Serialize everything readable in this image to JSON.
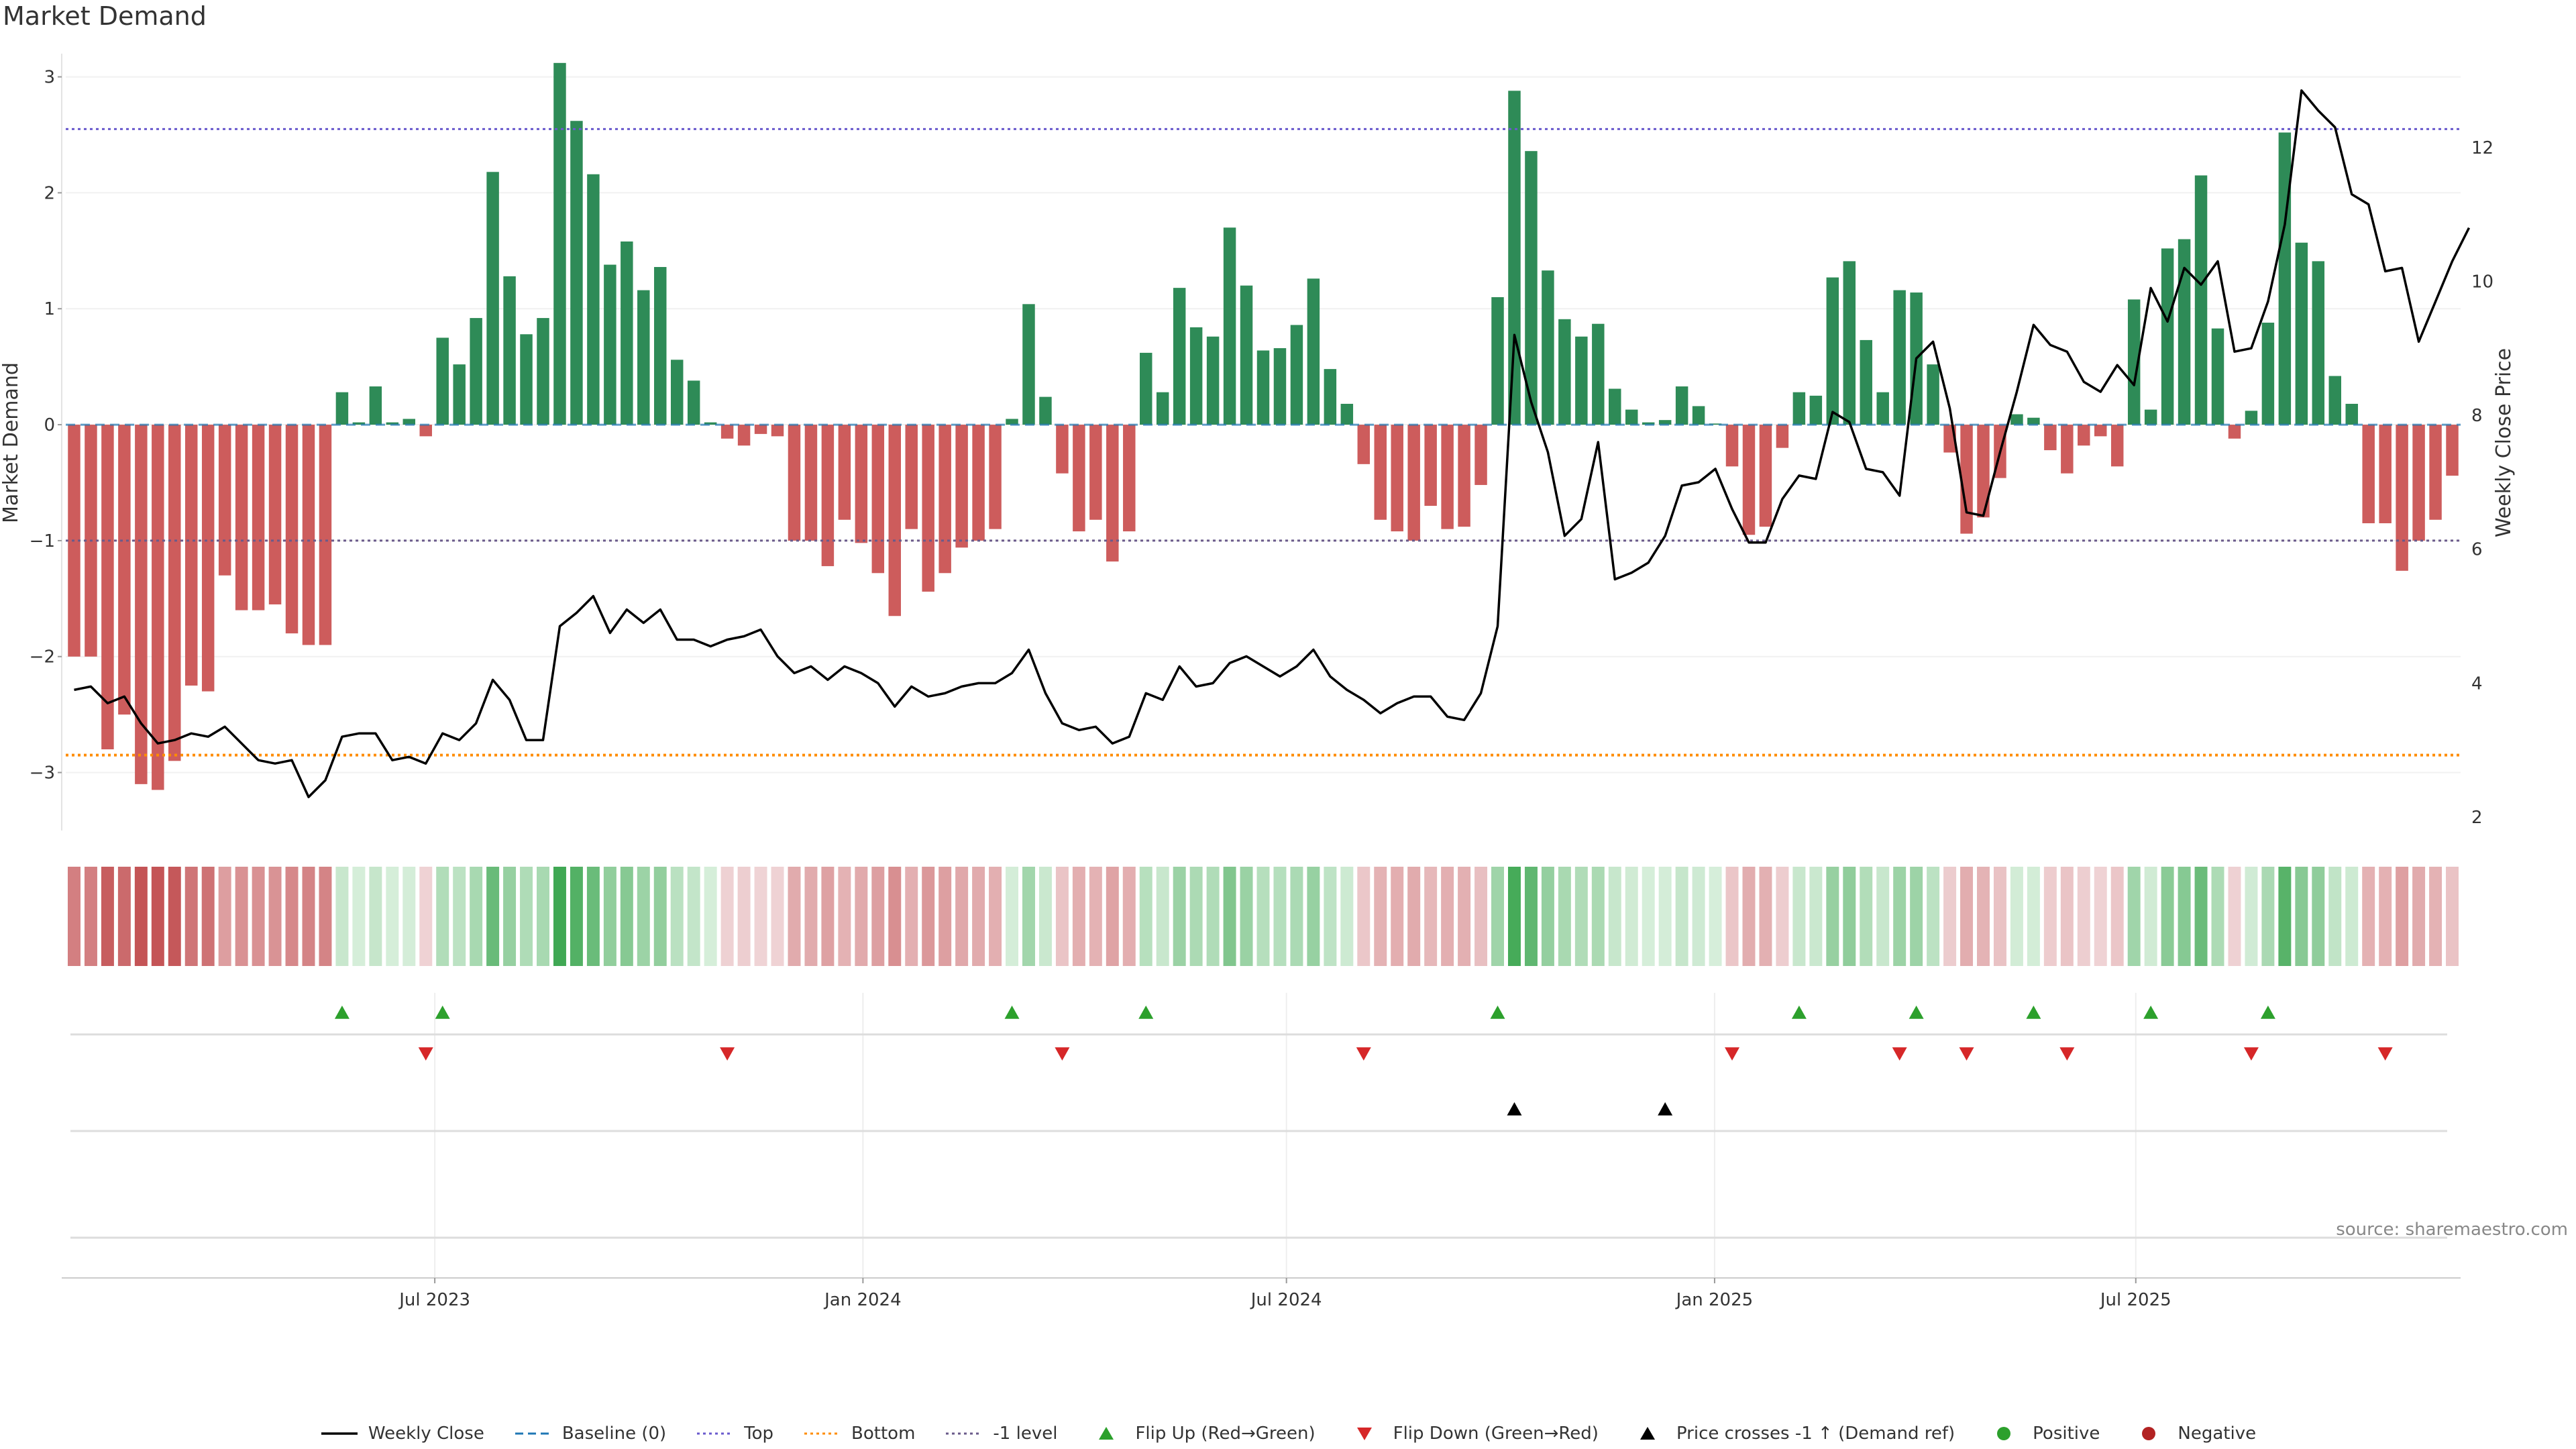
{
  "title": "Market Demand",
  "source": "source: sharemaestro.com",
  "colors": {
    "positive": "#2e8b57",
    "negative": "#cd5c5c",
    "price": "#000000",
    "top": "#6a5acd",
    "bottom": "#ff8c00",
    "minus_one": "#6a5a8a",
    "flip_up": "#2ca02c",
    "flip_down": "#d62728",
    "cross": "#000000"
  },
  "chart_data": {
    "type": "bar",
    "title": "Market Demand",
    "ylabel": "Market Demand",
    "y2label": "Weekly Close Price",
    "ylim": [
      -3.5,
      3.2
    ],
    "y2lim": [
      1.8,
      13.4
    ],
    "yticks": [
      -3,
      -2,
      -1,
      0,
      1,
      2,
      3
    ],
    "y2ticks": [
      2,
      4,
      6,
      8,
      10,
      12
    ],
    "x_start": "2023-01-27",
    "x_end": "2025-11-14",
    "xticks": [
      {
        "date": "2023-07-01",
        "label": "Jul 2023"
      },
      {
        "date": "2024-01-01",
        "label": "Jan 2024"
      },
      {
        "date": "2024-07-01",
        "label": "Jul 2024"
      },
      {
        "date": "2025-01-01",
        "label": "Jan 2025"
      },
      {
        "date": "2025-07-01",
        "label": "Jul 2025"
      }
    ],
    "reference_lines": {
      "top": 2.55,
      "bottom": -2.85,
      "minus_one": -1,
      "baseline": 0
    },
    "series": [
      {
        "name": "Market Demand",
        "type": "bar",
        "values": [
          -2.0,
          -2.0,
          -2.8,
          -2.5,
          -3.1,
          -3.15,
          -2.9,
          -2.25,
          -2.3,
          -1.3,
          -1.6,
          -1.6,
          -1.55,
          -1.8,
          -1.9,
          -1.9,
          0.28,
          0.02,
          0.33,
          0.02,
          0.05,
          -0.1,
          0.75,
          0.52,
          0.92,
          2.18,
          1.28,
          0.78,
          0.92,
          3.12,
          2.62,
          2.16,
          1.38,
          1.58,
          1.16,
          1.36,
          0.56,
          0.38,
          0.02,
          -0.12,
          -0.18,
          -0.08,
          -0.1,
          -1.0,
          -1.0,
          -1.22,
          -0.82,
          -1.02,
          -1.28,
          -1.65,
          -0.9,
          -1.44,
          -1.28,
          -1.06,
          -1.0,
          -0.9,
          0.05,
          1.04,
          0.24,
          -0.42,
          -0.92,
          -0.82,
          -1.18,
          -0.92,
          0.62,
          0.28,
          1.18,
          0.84,
          0.76,
          1.7,
          1.2,
          0.64,
          0.66,
          0.86,
          1.26,
          0.48,
          0.18,
          -0.34,
          -0.82,
          -0.92,
          -1.0,
          -0.7,
          -0.9,
          -0.88,
          -0.52,
          1.1,
          2.88,
          2.36,
          1.33,
          0.91,
          0.76,
          0.87,
          0.31,
          0.13,
          0.02,
          0.04,
          0.33,
          0.16,
          0.01,
          -0.36,
          -0.95,
          -0.88,
          -0.2,
          0.28,
          0.25,
          1.27,
          1.41,
          0.73,
          0.28,
          1.16,
          1.14,
          0.52,
          -0.24,
          -0.94,
          -0.8,
          -0.46,
          0.09,
          0.06,
          -0.22,
          -0.42,
          -0.18,
          -0.1,
          -0.36,
          1.08,
          0.13,
          1.52,
          1.6,
          2.15,
          0.83,
          -0.12,
          0.12,
          0.88,
          2.52,
          1.57,
          1.41,
          0.42,
          0.18,
          -0.85,
          -0.85,
          -1.26,
          -1.0,
          -0.82,
          -0.44
        ]
      },
      {
        "name": "Weekly Close",
        "type": "line",
        "axis": "right",
        "values": [
          3.9,
          3.95,
          3.7,
          3.8,
          3.4,
          3.1,
          3.15,
          3.25,
          3.2,
          3.35,
          3.1,
          2.85,
          2.8,
          2.85,
          2.3,
          2.55,
          3.2,
          3.25,
          3.25,
          2.85,
          2.9,
          2.8,
          3.25,
          3.15,
          3.4,
          4.05,
          3.75,
          3.15,
          3.15,
          4.85,
          5.05,
          5.3,
          4.75,
          5.1,
          4.9,
          5.1,
          4.65,
          4.65,
          4.55,
          4.65,
          4.7,
          4.8,
          4.4,
          4.15,
          4.25,
          4.05,
          4.25,
          4.15,
          4.0,
          3.65,
          3.95,
          3.8,
          3.85,
          3.95,
          4.0,
          4.0,
          4.15,
          4.5,
          3.85,
          3.4,
          3.3,
          3.35,
          3.1,
          3.2,
          3.85,
          3.75,
          4.25,
          3.95,
          4.0,
          4.3,
          4.4,
          4.25,
          4.1,
          4.25,
          4.5,
          4.1,
          3.9,
          3.75,
          3.55,
          3.7,
          3.8,
          3.8,
          3.5,
          3.45,
          3.85,
          4.85,
          9.2,
          8.2,
          7.45,
          6.2,
          6.45,
          7.6,
          5.55,
          5.65,
          5.8,
          6.2,
          6.95,
          7.0,
          7.2,
          6.6,
          6.1,
          6.1,
          6.75,
          7.1,
          7.05,
          8.05,
          7.9,
          7.2,
          7.15,
          6.8,
          8.85,
          9.1,
          8.1,
          6.55,
          6.5,
          7.45,
          8.35,
          9.35,
          9.05,
          8.95,
          8.5,
          8.35,
          8.75,
          8.45,
          9.9,
          9.4,
          10.2,
          9.95,
          10.3,
          8.95,
          9.0,
          9.7,
          10.85,
          12.85,
          12.55,
          12.3,
          11.3,
          11.15,
          10.15,
          10.2,
          9.1,
          9.7,
          10.3,
          10.8
        ]
      }
    ],
    "flip_up_indices": [
      16,
      22,
      56,
      64,
      85,
      103,
      110,
      117,
      124,
      131
    ],
    "flip_down_indices": [
      21,
      39,
      59,
      77,
      99,
      109,
      113,
      119,
      130,
      138
    ],
    "cross_up_indices": [
      86,
      95
    ],
    "legend": {
      "position": "bottom-center",
      "items": [
        {
          "label": "Weekly Close",
          "symbol": "solid-line",
          "color": "#000000"
        },
        {
          "label": "Baseline (0)",
          "symbol": "dashed-line",
          "color": "#1f77b4"
        },
        {
          "label": "Top",
          "symbol": "dotted-line",
          "color": "#6a5acd"
        },
        {
          "label": "Bottom",
          "symbol": "dotted-line",
          "color": "#ff8c00"
        },
        {
          "label": "-1 level",
          "symbol": "dotted-line",
          "color": "#6a5a8a"
        },
        {
          "label": "Flip Up (Red→Green)",
          "symbol": "triangle-up",
          "color": "#2ca02c"
        },
        {
          "label": "Flip Down (Green→Red)",
          "symbol": "triangle-down",
          "color": "#d62728"
        },
        {
          "label": "Price crosses -1 ↑ (Demand ref)",
          "symbol": "triangle-up",
          "color": "#000000"
        },
        {
          "label": "Positive",
          "symbol": "circle",
          "color": "#2ca02c"
        },
        {
          "label": "Negative",
          "symbol": "circle",
          "color": "#b22222"
        }
      ]
    }
  }
}
